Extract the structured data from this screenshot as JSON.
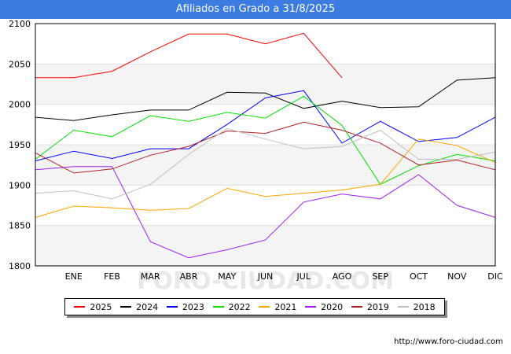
{
  "title": "Afiliados en Grado a 31/8/2025",
  "footer": "http://www.foro-ciudad.com",
  "watermark": "FORO-CIUDAD.COM",
  "chart_data": {
    "type": "line",
    "categories": [
      "",
      "ENE",
      "FEB",
      "MAR",
      "ABR",
      "MAY",
      "JUN",
      "JUL",
      "AGO",
      "SEP",
      "OCT",
      "NOV",
      "DIC"
    ],
    "ylim": [
      1800,
      2100
    ],
    "yticks": [
      1800,
      1850,
      1900,
      1950,
      2000,
      2050,
      2100
    ],
    "grid": "horizontal bands",
    "legend_position": "bottom",
    "series": [
      {
        "name": "2025",
        "color": "#ff0000",
        "values": [
          2033,
          2033,
          2041,
          2065,
          2087,
          2087,
          2075,
          2088,
          2033,
          null,
          null,
          null,
          null
        ]
      },
      {
        "name": "2024",
        "color": "#000000",
        "values": [
          1984,
          1980,
          1987,
          1993,
          1993,
          2015,
          2014,
          1995,
          2004,
          1996,
          1997,
          2030,
          2033
        ]
      },
      {
        "name": "2023",
        "color": "#0000ff",
        "values": [
          1930,
          1942,
          1933,
          1945,
          1945,
          1975,
          2008,
          2017,
          1952,
          1979,
          1954,
          1959,
          1984
        ]
      },
      {
        "name": "2022",
        "color": "#00e000",
        "values": [
          1932,
          1968,
          1960,
          1986,
          1979,
          1990,
          1983,
          2010,
          1974,
          1901,
          1924,
          1938,
          1930
        ]
      },
      {
        "name": "2021",
        "color": "#ffa500",
        "values": [
          1860,
          1874,
          1872,
          1869,
          1871,
          1896,
          1886,
          1890,
          1894,
          1901,
          1957,
          1949,
          1928
        ]
      },
      {
        "name": "2020",
        "color": "#a020f0",
        "values": [
          1919,
          1923,
          1923,
          1830,
          1810,
          1820,
          1832,
          1879,
          1889,
          1883,
          1913,
          1875,
          1860
        ]
      },
      {
        "name": "2019",
        "color": "#b22222",
        "values": [
          1940,
          1915,
          1920,
          1937,
          1948,
          1967,
          1964,
          1978,
          1968,
          1952,
          1925,
          1931,
          1919
        ]
      },
      {
        "name": "2018",
        "color": "#c0c0c0",
        "values": [
          1890,
          1893,
          1883,
          1901,
          1938,
          1970,
          1957,
          1945,
          1948,
          1968,
          1932,
          1932,
          1941
        ]
      }
    ]
  }
}
